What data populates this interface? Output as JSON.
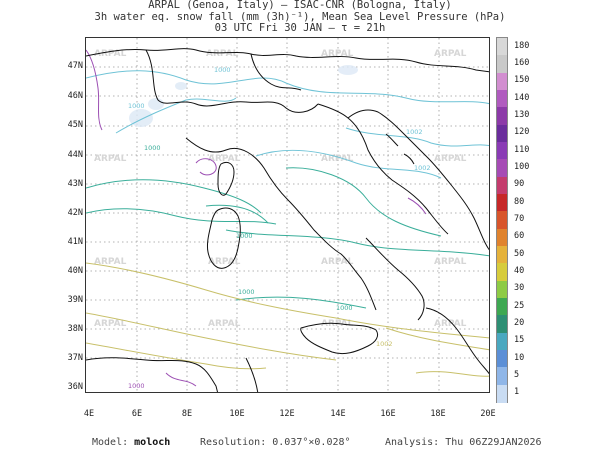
{
  "header": {
    "line1": "ARPAL (Genoa, Italy)  —  ISAC-CNR (Bologna, Italy)",
    "line2": "3h water eq. snow fall (mm (3h)⁻¹), Mean Sea Level Pressure (hPa)",
    "line3": "03 UTC Fri 30 JAN  —  τ = 21h"
  },
  "map": {
    "watermark": "ARPAL",
    "lat_labels": [
      "47N",
      "46N",
      "45N",
      "44N",
      "43N",
      "42N",
      "41N",
      "40N",
      "39N",
      "38N",
      "37N",
      "36N"
    ],
    "lon_labels": [
      "4E",
      "6E",
      "8E",
      "10E",
      "12E",
      "14E",
      "16E",
      "18E",
      "20E"
    ],
    "isobar_labels": [
      "1000",
      "1000",
      "1000",
      "1000",
      "1000",
      "1002",
      "1002",
      "1002",
      "1000",
      "1000"
    ],
    "colors": {
      "coast": "#111111",
      "isobar_green": "#3aae9a",
      "isobar_cyan": "#6fc3d6",
      "isobar_yellow": "#c8c06a",
      "isobar_purple": "#9c4fb3"
    }
  },
  "colorbar": {
    "labels": [
      "180",
      "160",
      "150",
      "140",
      "130",
      "120",
      "110",
      "100",
      "90",
      "80",
      "70",
      "60",
      "50",
      "40",
      "30",
      "25",
      "20",
      "15",
      "10",
      "5",
      "1"
    ],
    "colors": [
      "#d8d8d8",
      "#c9c9c9",
      "#d28ed0",
      "#b05bbf",
      "#8c3aa8",
      "#6a2d9c",
      "#8a3bb5",
      "#a64bb5",
      "#c43c6d",
      "#c62828",
      "#d8552b",
      "#e0832e",
      "#e5b23b",
      "#d7cc3c",
      "#8ecb45",
      "#3ea852",
      "#2e8f74",
      "#4aa8c0",
      "#5c8fd6",
      "#8fb6e8",
      "#c9dcf3"
    ]
  },
  "footer": {
    "model_label": "Model:",
    "model_value": "moloch",
    "resolution_label": "Resolution:",
    "resolution_value": "0.037°×0.028°",
    "analysis_label": "Analysis:",
    "analysis_value": "Thu 06Z29JAN2026"
  }
}
